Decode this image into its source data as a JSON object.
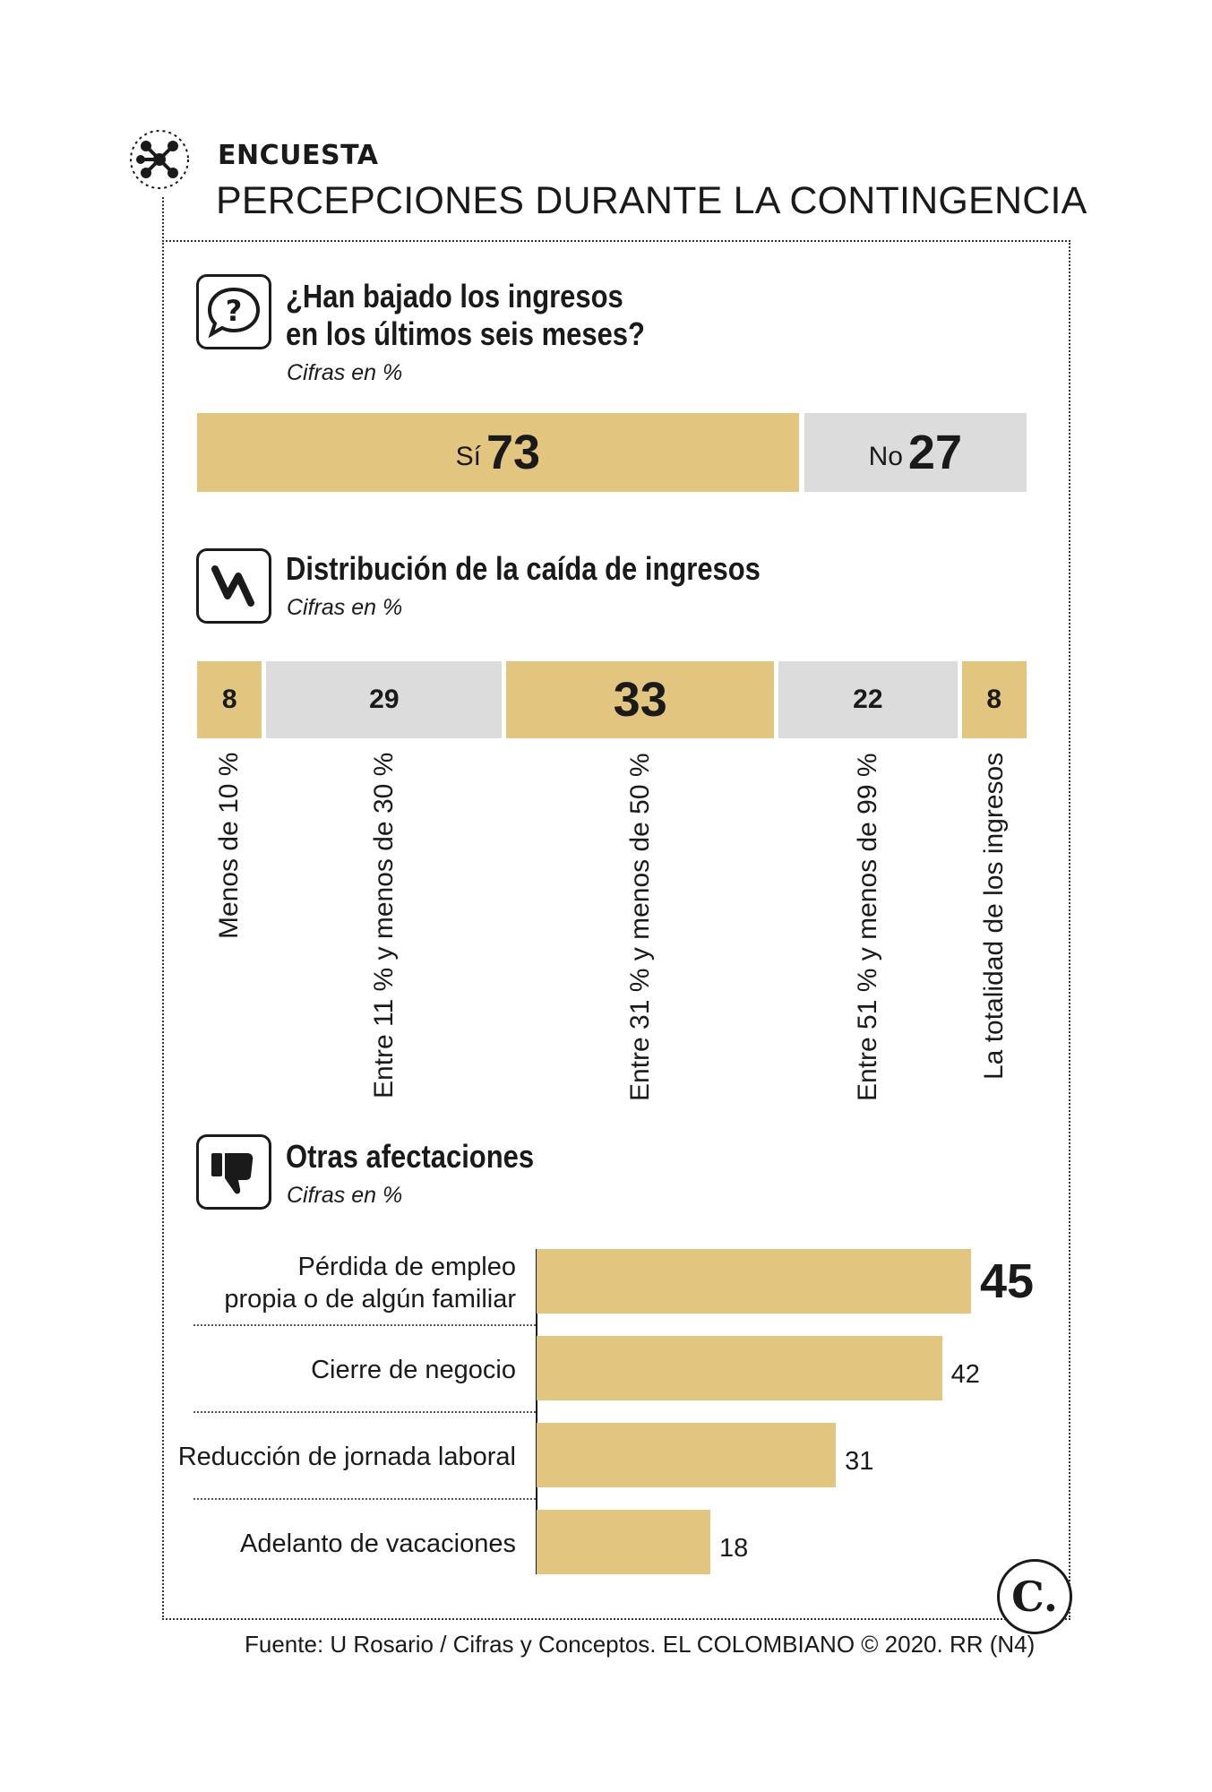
{
  "header": {
    "kicker": "ENCUESTA",
    "title": "PERCEPCIONES DURANTE LA CONTINGENCIA"
  },
  "section1": {
    "title_line1": "¿Han bajado los ingresos",
    "title_line2": "en los últimos seis meses?",
    "subtitle": "Cifras en %",
    "icon": "question-bubble-icon"
  },
  "section2": {
    "title": "Distribución de la caída de ingresos",
    "subtitle": "Cifras en %",
    "icon": "falling-trend-icon"
  },
  "section3": {
    "title": "Otras afectaciones",
    "subtitle": "Cifras en %",
    "icon": "thumbs-down-icon"
  },
  "source": "Fuente: U Rosario / Cifras y Conceptos. EL COLOMBIANO © 2020. RR (N4)",
  "logo_text": "C.",
  "colors": {
    "gold": "#e2c57f",
    "gray": "#dcdcdd",
    "text": "#1a1a1a"
  },
  "chart_data": [
    {
      "type": "bar",
      "orientation": "stacked-horizontal",
      "title": "¿Han bajado los ingresos en los últimos seis meses?",
      "subtitle": "Cifras en %",
      "categories": [
        "Sí",
        "No"
      ],
      "values": [
        73,
        27
      ]
    },
    {
      "type": "bar",
      "orientation": "stacked-horizontal",
      "title": "Distribución de la caída de ingresos",
      "subtitle": "Cifras en %",
      "categories": [
        "Menos de 10 %",
        "Entre 11 % y menos de 30 %",
        "Entre 31 % y menos de 50 %",
        "Entre 51 % y menos de 99 %",
        "La totalidad de los ingresos"
      ],
      "values": [
        8,
        29,
        33,
        22,
        8
      ],
      "colors": [
        "#e2c57f",
        "#dcdcdd",
        "#e2c57f",
        "#dcdcdd",
        "#e2c57f"
      ]
    },
    {
      "type": "bar",
      "orientation": "horizontal",
      "title": "Otras afectaciones",
      "subtitle": "Cifras en %",
      "categories": [
        [
          "Pérdida de empleo",
          "propia o de algún familiar"
        ],
        [
          "Cierre de negocio"
        ],
        [
          "Reducción de jornada laboral"
        ],
        [
          "Adelanto de vacaciones"
        ]
      ],
      "values": [
        45,
        42,
        31,
        18
      ]
    }
  ]
}
